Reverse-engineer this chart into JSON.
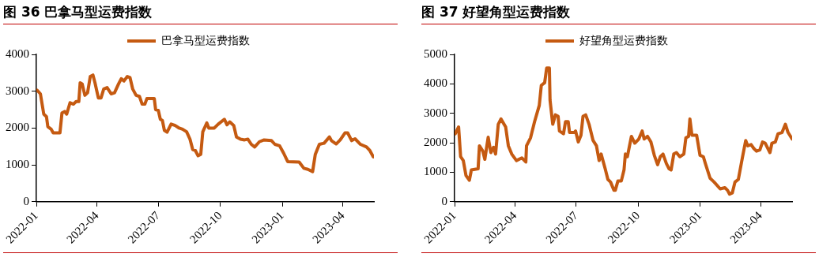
{
  "chart_data": [
    {
      "type": "line",
      "title": "图 36 巴拿马型运费指数",
      "legend": "top",
      "grid": false,
      "marker": "none",
      "line_style": "solid",
      "xlim": [
        "2022-01-01",
        "2023-05-17"
      ],
      "xticks": [
        "2022-01",
        "2022-04",
        "2022-07",
        "2022-10",
        "2023-01",
        "2023-04"
      ],
      "ylim": [
        0,
        4000
      ],
      "yticks": [
        0,
        1000,
        2000,
        3000,
        4000
      ],
      "series": [
        {
          "name": "巴拿马型运费指数",
          "color": "#c55a11",
          "x": [
            "2022-01-02",
            "2022-01-07",
            "2022-01-12",
            "2022-01-16",
            "2022-01-18",
            "2022-01-23",
            "2022-01-26",
            "2022-02-05",
            "2022-02-08",
            "2022-02-12",
            "2022-02-15",
            "2022-02-20",
            "2022-02-25",
            "2022-03-01",
            "2022-03-05",
            "2022-03-07",
            "2022-03-10",
            "2022-03-14",
            "2022-03-18",
            "2022-03-22",
            "2022-03-26",
            "2022-03-29",
            "2022-04-03",
            "2022-04-07",
            "2022-04-11",
            "2022-04-16",
            "2022-04-22",
            "2022-04-27",
            "2022-05-03",
            "2022-05-07",
            "2022-05-11",
            "2022-05-16",
            "2022-05-20",
            "2022-05-24",
            "2022-05-29",
            "2022-06-03",
            "2022-06-07",
            "2022-06-11",
            "2022-06-14",
            "2022-06-25",
            "2022-06-27",
            "2022-07-01",
            "2022-07-04",
            "2022-07-07",
            "2022-07-10",
            "2022-07-14",
            "2022-07-20",
            "2022-07-26",
            "2022-08-01",
            "2022-08-06",
            "2022-08-12",
            "2022-08-17",
            "2022-08-21",
            "2022-08-25",
            "2022-08-29",
            "2022-09-02",
            "2022-09-05",
            "2022-09-11",
            "2022-09-14",
            "2022-09-22",
            "2022-09-28",
            "2022-10-07",
            "2022-10-11",
            "2022-10-15",
            "2022-10-21",
            "2022-10-25",
            "2022-10-31",
            "2022-11-06",
            "2022-11-11",
            "2022-11-16",
            "2022-11-21",
            "2022-11-28",
            "2022-12-05",
            "2022-12-16",
            "2022-12-21",
            "2022-12-28",
            "2023-01-03",
            "2023-01-09",
            "2023-01-26",
            "2023-02-02",
            "2023-02-08",
            "2023-02-15",
            "2023-02-19",
            "2023-02-25",
            "2023-03-04",
            "2023-03-12",
            "2023-03-15",
            "2023-03-22",
            "2023-03-28",
            "2023-04-04",
            "2023-04-08",
            "2023-04-14",
            "2023-04-19",
            "2023-04-27",
            "2023-05-06",
            "2023-05-11",
            "2023-05-16"
          ],
          "values": [
            3030,
            2930,
            2380,
            2310,
            2040,
            1970,
            1870,
            1870,
            2410,
            2450,
            2380,
            2690,
            2650,
            2720,
            2720,
            3230,
            3200,
            2890,
            2960,
            3400,
            3440,
            3230,
            2820,
            2820,
            3060,
            3100,
            2930,
            2960,
            3200,
            3340,
            3280,
            3400,
            3370,
            3060,
            2890,
            2860,
            2650,
            2650,
            2800,
            2800,
            2500,
            2480,
            2240,
            2210,
            1940,
            1890,
            2110,
            2070,
            2000,
            1970,
            1900,
            1700,
            1420,
            1390,
            1250,
            1290,
            1900,
            2140,
            2000,
            2000,
            2110,
            2240,
            2090,
            2170,
            2070,
            1760,
            1700,
            1680,
            1700,
            1560,
            1490,
            1630,
            1680,
            1660,
            1560,
            1520,
            1320,
            1090,
            1080,
            910,
            880,
            820,
            1290,
            1560,
            1590,
            1760,
            1660,
            1570,
            1680,
            1870,
            1870,
            1660,
            1710,
            1560,
            1490,
            1390,
            1220
          ]
        }
      ]
    },
    {
      "type": "line",
      "title": "图 37 好望角型运费指数",
      "legend": "top",
      "grid": false,
      "marker": "none",
      "line_style": "solid",
      "xlim": [
        "2022-01-01",
        "2023-05-18"
      ],
      "xticks": [
        "2022-01",
        "2022-04",
        "2022-07",
        "2022-10",
        "2023-01",
        "2023-04"
      ],
      "ylim": [
        0,
        5000
      ],
      "yticks": [
        0,
        1000,
        2000,
        3000,
        4000,
        5000
      ],
      "series": [
        {
          "name": "好望角型运费指数",
          "color": "#c55a11",
          "x": [
            "2022-01-02",
            "2022-01-07",
            "2022-01-10",
            "2022-01-14",
            "2022-01-18",
            "2022-01-23",
            "2022-01-26",
            "2022-02-05",
            "2022-02-07",
            "2022-02-12",
            "2022-02-15",
            "2022-02-20",
            "2022-02-24",
            "2022-02-28",
            "2022-03-03",
            "2022-03-07",
            "2022-03-11",
            "2022-03-18",
            "2022-03-22",
            "2022-03-27",
            "2022-04-03",
            "2022-04-11",
            "2022-04-17",
            "2022-04-18",
            "2022-04-24",
            "2022-04-30",
            "2022-05-07",
            "2022-05-10",
            "2022-05-15",
            "2022-05-18",
            "2022-05-22",
            "2022-05-23",
            "2022-05-27",
            "2022-05-31",
            "2022-06-04",
            "2022-06-06",
            "2022-06-12",
            "2022-06-15",
            "2022-06-19",
            "2022-06-21",
            "2022-06-28",
            "2022-06-30",
            "2022-07-04",
            "2022-07-08",
            "2022-07-11",
            "2022-07-15",
            "2022-07-20",
            "2022-07-26",
            "2022-07-31",
            "2022-08-04",
            "2022-08-07",
            "2022-08-13",
            "2022-08-17",
            "2022-08-21",
            "2022-08-26",
            "2022-08-28",
            "2022-09-01",
            "2022-09-06",
            "2022-09-10",
            "2022-09-12",
            "2022-09-15",
            "2022-09-21",
            "2022-09-26",
            "2022-10-02",
            "2022-10-07",
            "2022-10-10",
            "2022-10-15",
            "2022-10-20",
            "2022-10-25",
            "2022-10-30",
            "2022-11-03",
            "2022-11-07",
            "2022-11-12",
            "2022-11-16",
            "2022-11-19",
            "2022-11-23",
            "2022-11-27",
            "2022-12-02",
            "2022-12-08",
            "2022-12-11",
            "2022-12-15",
            "2022-12-17",
            "2022-12-20",
            "2022-12-27",
            "2023-01-01",
            "2023-01-06",
            "2023-01-09",
            "2023-01-16",
            "2023-01-22",
            "2023-01-31",
            "2023-02-07",
            "2023-02-11",
            "2023-02-14",
            "2023-02-18",
            "2023-02-22",
            "2023-02-27",
            "2023-03-05",
            "2023-03-10",
            "2023-03-13",
            "2023-03-18",
            "2023-03-22",
            "2023-03-26",
            "2023-03-31",
            "2023-04-04",
            "2023-04-08",
            "2023-04-15",
            "2023-04-18",
            "2023-04-23",
            "2023-04-27",
            "2023-05-03",
            "2023-05-08",
            "2023-05-12",
            "2023-05-18"
          ],
          "values": [
            2310,
            2540,
            1530,
            1400,
            890,
            730,
            1080,
            1120,
            1900,
            1720,
            1440,
            2190,
            1670,
            1850,
            1620,
            2630,
            2810,
            2540,
            1900,
            1620,
            1400,
            1490,
            1350,
            1900,
            2170,
            2720,
            3270,
            3950,
            4040,
            4540,
            4540,
            3450,
            2630,
            2950,
            2900,
            2400,
            2310,
            2720,
            2720,
            2350,
            2350,
            2400,
            2030,
            2260,
            2900,
            2950,
            2630,
            2080,
            1900,
            1400,
            1620,
            1120,
            760,
            670,
            390,
            390,
            710,
            710,
            1080,
            1620,
            1530,
            2220,
            1990,
            2130,
            2400,
            2130,
            2220,
            2030,
            1580,
            1260,
            1530,
            1620,
            1300,
            1120,
            1080,
            1620,
            1670,
            1530,
            1620,
            2170,
            2220,
            2810,
            2260,
            2260,
            1580,
            1530,
            1300,
            800,
            670,
            440,
            480,
            390,
            260,
            300,
            670,
            760,
            1490,
            2080,
            1900,
            1940,
            1810,
            1720,
            1760,
            2030,
            1990,
            1670,
            1990,
            2030,
            2310,
            2350,
            2630,
            2350,
            2130
          ]
        }
      ]
    }
  ]
}
